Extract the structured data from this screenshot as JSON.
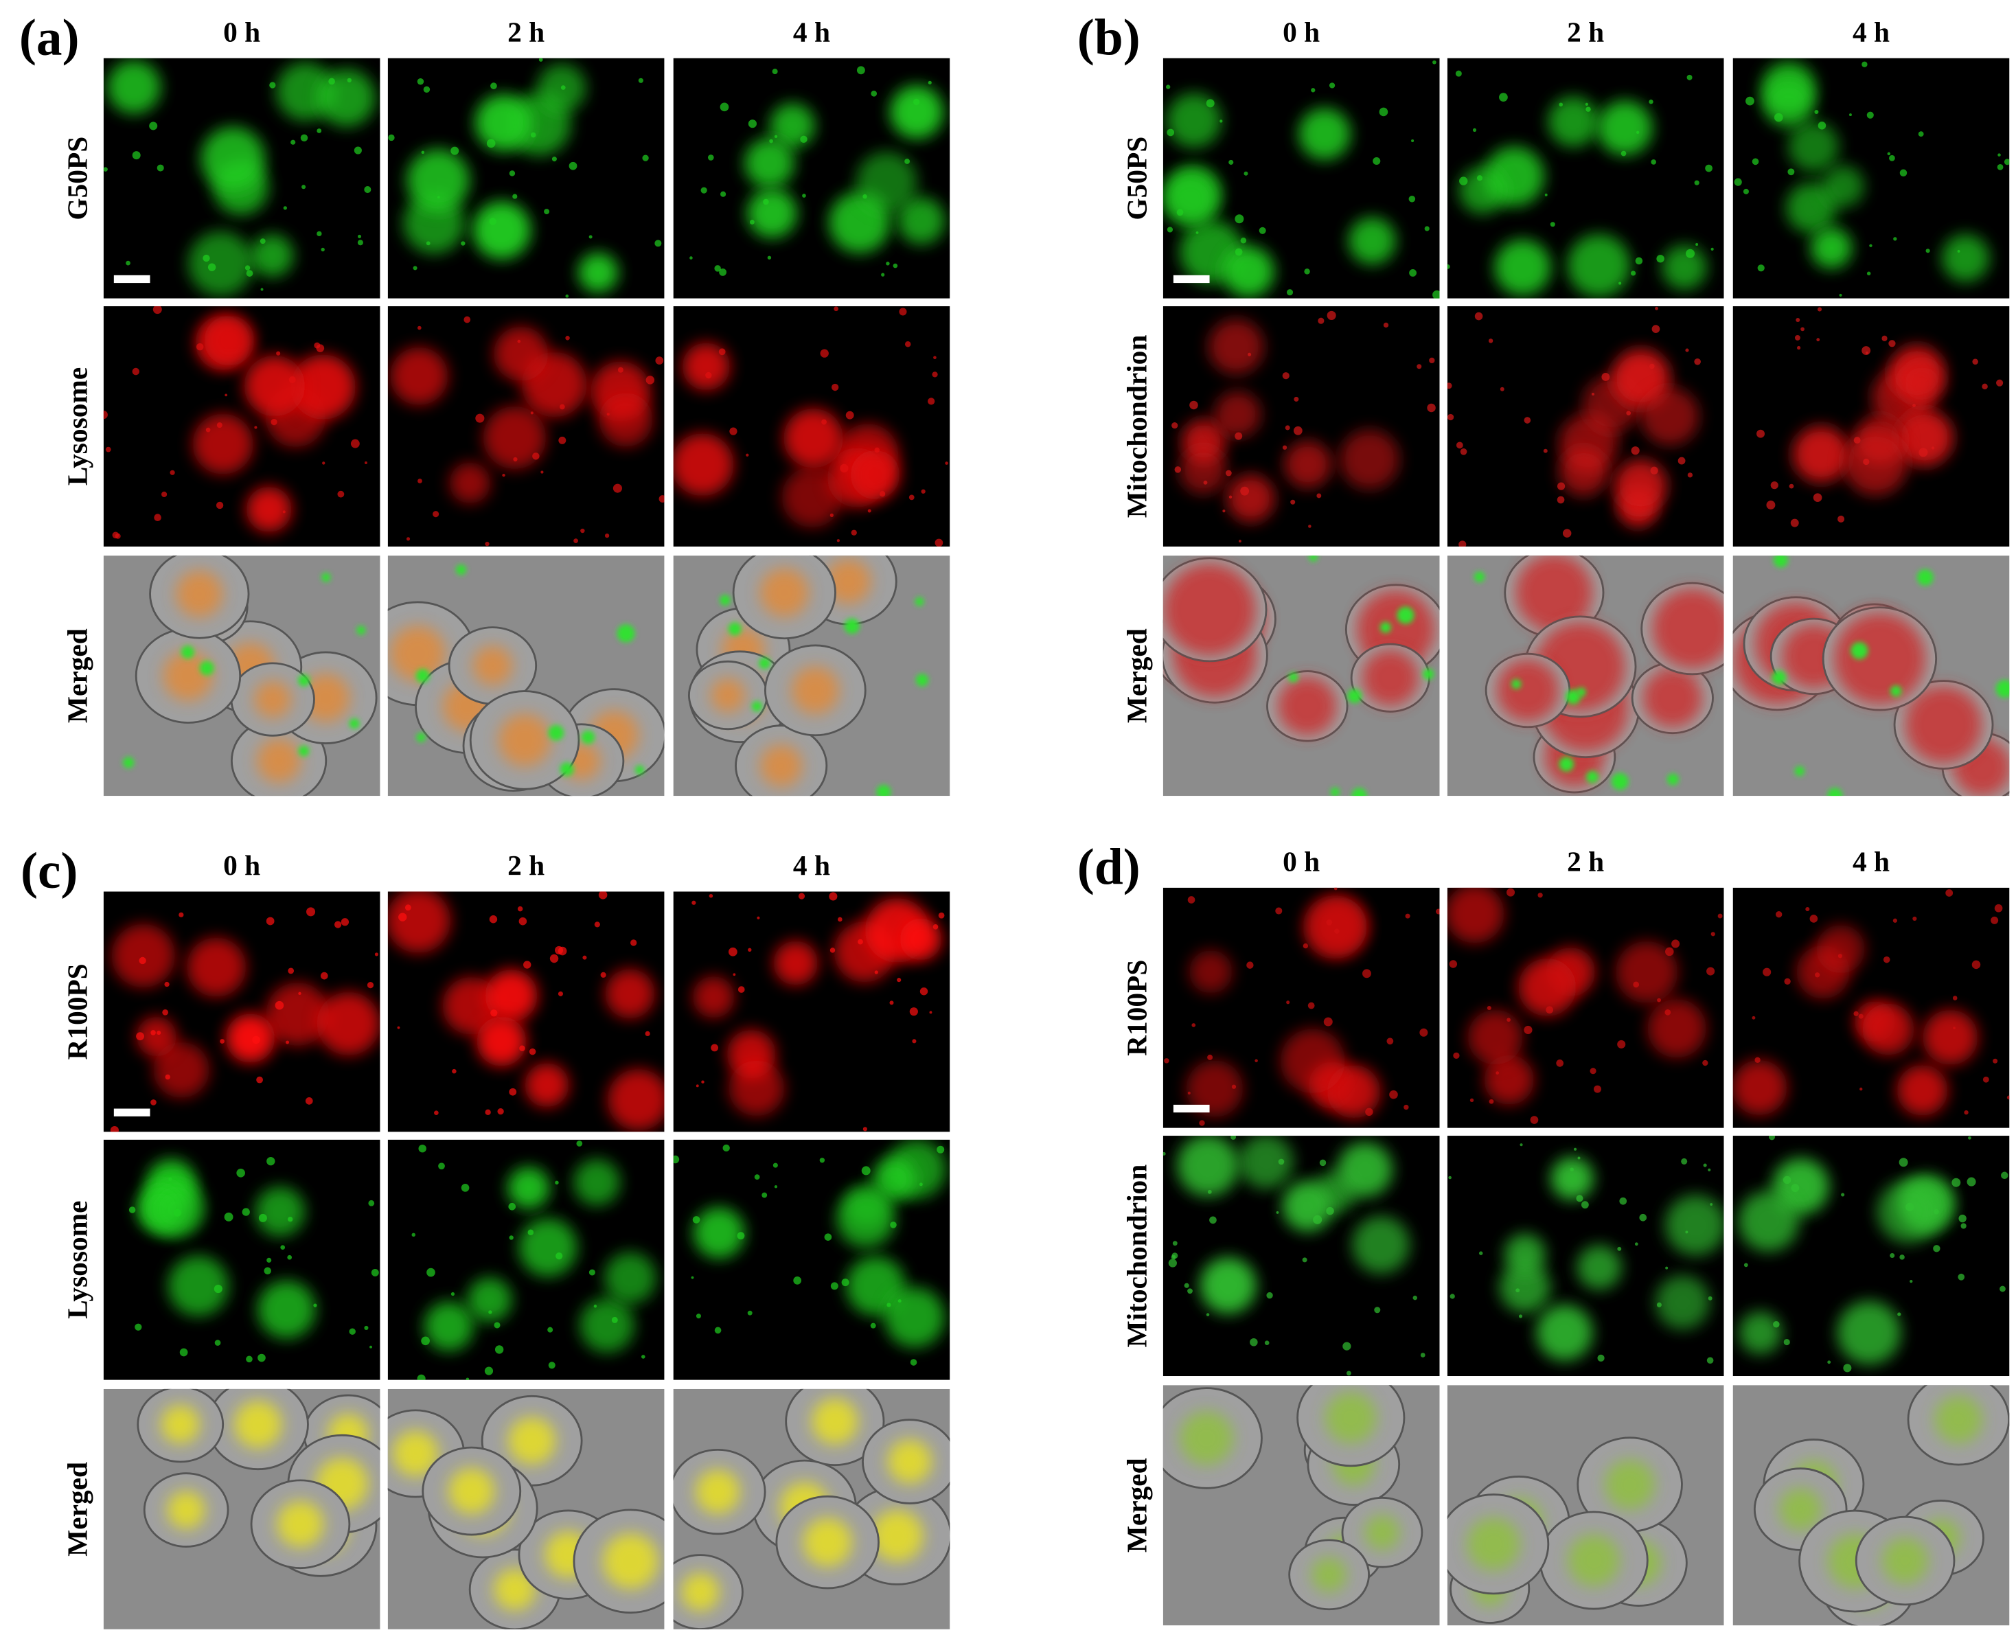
{
  "panels": [
    {
      "label": "(a)",
      "columns": [
        "0 h",
        "2 h",
        "4 h"
      ],
      "rows": [
        "G50PS",
        "Lysosome",
        "Merged"
      ]
    },
    {
      "label": "(b)",
      "columns": [
        "0 h",
        "2 h",
        "4 h"
      ],
      "rows": [
        "G50PS",
        "Mitochondrion",
        "Merged"
      ]
    },
    {
      "label": "(c)",
      "columns": [
        "0 h",
        "2 h",
        "4 h"
      ],
      "rows": [
        "R100PS",
        "Lysosome",
        "Merged"
      ]
    },
    {
      "label": "(d)",
      "columns": [
        "0 h",
        "2 h",
        "4 h"
      ],
      "rows": [
        "R100PS",
        "Mitochondrion",
        "Merged"
      ]
    }
  ]
}
